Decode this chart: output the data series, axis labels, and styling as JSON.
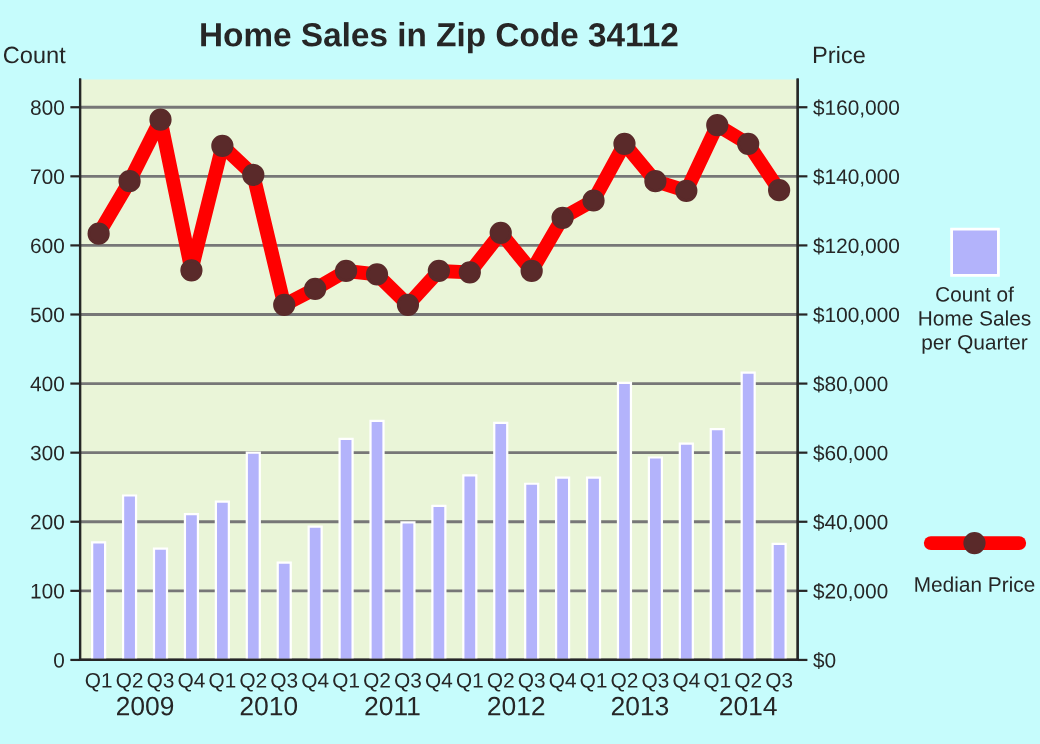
{
  "chart_data": {
    "type": "bar",
    "title": "Home Sales in Zip Code 34112",
    "ylabel": "Count",
    "y2label": "Price",
    "categories": [
      "Q1",
      "Q2",
      "Q3",
      "Q4",
      "Q1",
      "Q2",
      "Q3",
      "Q4",
      "Q1",
      "Q2",
      "Q3",
      "Q4",
      "Q1",
      "Q2",
      "Q3",
      "Q4",
      "Q1",
      "Q2",
      "Q3",
      "Q4",
      "Q1",
      "Q2",
      "Q3"
    ],
    "series": [
      {
        "name": "Count of Home Sales per Quarter",
        "color": "#b3b3fb",
        "values": [
          170,
          238,
          161,
          211,
          229,
          300,
          141,
          193,
          320,
          346,
          199,
          223,
          267,
          343,
          255,
          264,
          264,
          401,
          293,
          313,
          334,
          416,
          168
        ]
      },
      {
        "name": "Median Price",
        "type": "line",
        "axis": "y2",
        "color": "#ff0000",
        "marker": "circle",
        "values": [
          123400,
          138600,
          156400,
          112800,
          148800,
          140400,
          102800,
          107400,
          112600,
          111600,
          102800,
          112600,
          112200,
          123600,
          112600,
          128000,
          133000,
          149400,
          138600,
          135800,
          154800,
          149400,
          136000
        ]
      }
    ],
    "ylim": [
      0,
      840
    ],
    "yticks": [
      0,
      100,
      200,
      300,
      400,
      500,
      600,
      700,
      800
    ],
    "y2lim": [
      0,
      168000
    ],
    "y2ticks": [
      {
        "value": 0,
        "label": "$0"
      },
      {
        "value": 20000,
        "label": "$20,000"
      },
      {
        "value": 40000,
        "label": "$40,000"
      },
      {
        "value": 60000,
        "label": "$60,000"
      },
      {
        "value": 80000,
        "label": "$80,000"
      },
      {
        "value": 100000,
        "label": "$100,000"
      },
      {
        "value": 120000,
        "label": "$120,000"
      },
      {
        "value": 140000,
        "label": "$140,000"
      },
      {
        "value": 160000,
        "label": "$160,000"
      }
    ],
    "annotations": [
      "2009",
      "2010",
      "2011",
      "2012",
      "2013",
      "2014"
    ],
    "grid": "y",
    "legend": "right"
  }
}
